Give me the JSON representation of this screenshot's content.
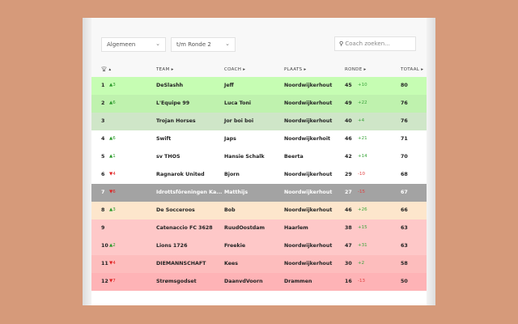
{
  "filters": {
    "category": "Algemeen",
    "round": "t/m Ronde 2",
    "search_placeholder": "Coach zoeken..."
  },
  "columns": {
    "rank": "",
    "team": "TEAM",
    "coach": "COACH",
    "plaats": "PLAATS",
    "ronde": "RONDE",
    "totaal": "TOTAAL"
  },
  "rows": [
    {
      "rank": "1",
      "change": "▲3",
      "dir": "up",
      "team": "DeSlashh",
      "coach": "Jeff",
      "plaats": "Noordwijkerhout",
      "ronde": "45",
      "diff": "+10",
      "totaal": "80",
      "bg": "#c6fdb3",
      "fg": "#222"
    },
    {
      "rank": "2",
      "change": "▲6",
      "dir": "up",
      "team": "L'Equipe 99",
      "coach": "Luca Toni",
      "plaats": "Noordwijkerhout",
      "ronde": "49",
      "diff": "+22",
      "totaal": "76",
      "bg": "#bff2ae",
      "fg": "#222"
    },
    {
      "rank": "3",
      "change": "",
      "dir": "",
      "team": "Trojan Horses",
      "coach": "Jor boi boi",
      "plaats": "Noordwijkerhout",
      "ronde": "40",
      "diff": "+4",
      "totaal": "76",
      "bg": "#cfe6c8",
      "fg": "#222"
    },
    {
      "rank": "4",
      "change": "▲6",
      "dir": "up",
      "team": "Swift",
      "coach": "Japs",
      "plaats": "Noordwijkerhoit",
      "ronde": "46",
      "diff": "+21",
      "totaal": "71",
      "bg": "#ffffff",
      "fg": "#222"
    },
    {
      "rank": "5",
      "change": "▲1",
      "dir": "up",
      "team": "sv THOS",
      "coach": "Hansie Schalk",
      "plaats": "Beerta",
      "ronde": "42",
      "diff": "+14",
      "totaal": "70",
      "bg": "#ffffff",
      "fg": "#222"
    },
    {
      "rank": "6",
      "change": "▼4",
      "dir": "down",
      "team": "Ragnarok United",
      "coach": "Bjorn",
      "plaats": "Noordwijkerhout",
      "ronde": "29",
      "diff": "-10",
      "totaal": "68",
      "bg": "#ffffff",
      "fg": "#222"
    },
    {
      "rank": "7",
      "change": "▼6",
      "dir": "down",
      "team": "Idrottsföreningen Ka...",
      "coach": "Matthijs",
      "plaats": "Noordwijkerhout",
      "ronde": "27",
      "diff": "-15",
      "totaal": "67",
      "bg": "#a3a3a3",
      "fg": "#ffffff"
    },
    {
      "rank": "8",
      "change": "▲3",
      "dir": "up",
      "team": "De Socceroos",
      "coach": "Bob",
      "plaats": "Noordwijkerhout",
      "ronde": "46",
      "diff": "+26",
      "totaal": "66",
      "bg": "#fde6cc",
      "fg": "#222"
    },
    {
      "rank": "9",
      "change": "",
      "dir": "",
      "team": "Catenaccio FC 3628",
      "coach": "RuudOostdam",
      "plaats": "Haarlem",
      "ronde": "38",
      "diff": "+15",
      "totaal": "63",
      "bg": "#fec8c8",
      "fg": "#222"
    },
    {
      "rank": "10",
      "change": "▲2",
      "dir": "up",
      "team": "Lions 1726",
      "coach": "Freekie",
      "plaats": "Noordwijkerhout",
      "ronde": "47",
      "diff": "+31",
      "totaal": "63",
      "bg": "#fec8c8",
      "fg": "#222"
    },
    {
      "rank": "11",
      "change": "▼4",
      "dir": "down",
      "team": "DIEMANNSCHAFT",
      "coach": "Kees",
      "plaats": "Noordwijkerhout",
      "ronde": "30",
      "diff": "+2",
      "totaal": "58",
      "bg": "#fdbdbd",
      "fg": "#222"
    },
    {
      "rank": "12",
      "change": "▼7",
      "dir": "down",
      "team": "Strømsgodset",
      "coach": "DaanvdVoorn",
      "plaats": "Drammen",
      "ronde": "16",
      "diff": "-13",
      "totaal": "50",
      "bg": "#feb3b6",
      "fg": "#222"
    }
  ]
}
